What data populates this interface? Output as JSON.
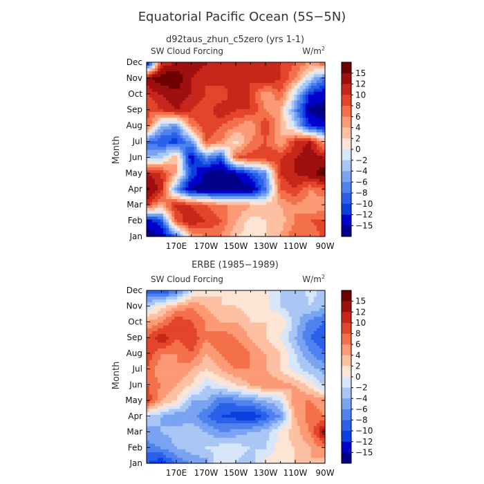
{
  "figure": {
    "title": "Equatorial Pacific Ocean (5S−5N)"
  },
  "chart_data": [
    {
      "type": "heatmap",
      "title": "d92taus_zhun_c5zero (yrs 1-1)",
      "variable": "SW Cloud Forcing",
      "units_base": "W/m",
      "units_exp": "2",
      "ylabel": "Month",
      "x_ticks": [
        "170E",
        "170W",
        "150W",
        "130W",
        "110W",
        "90W"
      ],
      "y_ticks": [
        "Jan",
        "Feb",
        "Mar",
        "Apr",
        "May",
        "Jun",
        "Jul",
        "Aug",
        "Sep",
        "Oct",
        "Nov",
        "Dec"
      ],
      "x": [
        150,
        160,
        170,
        180,
        190,
        200,
        210,
        220,
        230,
        240,
        250,
        260,
        270
      ],
      "y": [
        1,
        2,
        3,
        4,
        5,
        6,
        7,
        8,
        9,
        10,
        11,
        12
      ],
      "z": [
        [
          -17,
          -16,
          -8,
          4,
          6,
          6,
          2,
          1,
          2,
          4,
          8,
          6,
          9
        ],
        [
          -14,
          -10,
          8,
          12,
          10,
          8,
          4,
          1,
          2,
          3,
          6,
          8,
          9
        ],
        [
          10,
          4,
          11,
          10,
          8,
          6,
          6,
          4,
          3,
          4,
          6,
          4,
          4
        ],
        [
          16,
          11,
          -6,
          -16,
          -16,
          -18,
          -18,
          -16,
          -8,
          8,
          10,
          6,
          8
        ],
        [
          12,
          10,
          4,
          -10,
          -16,
          -17,
          -15,
          -10,
          -6,
          10,
          12,
          14,
          17
        ],
        [
          -4,
          -2,
          4,
          -14,
          -6,
          -10,
          8,
          9,
          10,
          10,
          12,
          14,
          12
        ],
        [
          -8,
          -10,
          -11,
          -6,
          8,
          6,
          1,
          6,
          8,
          4,
          10,
          12,
          4
        ],
        [
          9,
          -4,
          -6,
          6,
          10,
          8,
          6,
          4,
          10,
          4,
          -2,
          -12,
          -14
        ],
        [
          8,
          10,
          12,
          10,
          8,
          12,
          10,
          10,
          6,
          4,
          -6,
          -16,
          -17
        ],
        [
          10,
          12,
          14,
          12,
          10,
          8,
          12,
          10,
          4,
          8,
          -2,
          -12,
          -14
        ],
        [
          14,
          17,
          18,
          12,
          10,
          12,
          10,
          10,
          12,
          10,
          6,
          -2,
          -8
        ],
        [
          -16,
          10,
          12,
          14,
          12,
          10,
          10,
          12,
          12,
          10,
          8,
          6,
          8
        ]
      ],
      "color_levels": [
        15,
        12,
        10,
        8,
        6,
        4,
        2,
        0,
        -2,
        -4,
        -6,
        -8,
        -10,
        -12,
        -15
      ]
    },
    {
      "type": "heatmap",
      "title": "ERBE (1985−1989)",
      "variable": "SW Cloud Forcing",
      "units_base": "W/m",
      "units_exp": "2",
      "ylabel": "Month",
      "x_ticks": [
        "170E",
        "170W",
        "150W",
        "130W",
        "110W",
        "90W"
      ],
      "y_ticks": [
        "Jan",
        "Feb",
        "Mar",
        "Apr",
        "May",
        "Jun",
        "Jul",
        "Aug",
        "Sep",
        "Oct",
        "Nov",
        "Dec"
      ],
      "x": [
        150,
        160,
        170,
        180,
        190,
        200,
        210,
        220,
        230,
        240,
        250,
        260,
        270
      ],
      "y": [
        1,
        2,
        3,
        4,
        5,
        6,
        7,
        8,
        9,
        10,
        11,
        12
      ],
      "z": [
        [
          -10,
          -12,
          -8,
          -6,
          -5,
          0,
          -2,
          -4,
          1,
          1,
          2,
          4,
          3
        ],
        [
          -7,
          -6,
          -4,
          -3,
          -2,
          -1,
          -1,
          -2,
          -2,
          1,
          2,
          4,
          6
        ],
        [
          -5,
          -4,
          -3,
          -2,
          -4,
          -6,
          -5,
          -4,
          -3,
          1,
          3,
          6,
          14
        ],
        [
          -2,
          -4,
          -6,
          -5,
          -8,
          -10,
          -11,
          -12,
          -9,
          -6,
          4,
          7,
          6
        ],
        [
          10,
          4,
          2,
          -4,
          -4,
          -8,
          -7,
          -6,
          -4,
          -2,
          6,
          6,
          5
        ],
        [
          8,
          6,
          4,
          2,
          -2,
          0,
          2,
          4,
          6,
          5,
          4,
          1,
          -3
        ],
        [
          8,
          4,
          6,
          4,
          2,
          4,
          6,
          6,
          4,
          2,
          -1,
          -3,
          -5
        ],
        [
          10,
          6,
          6,
          8,
          4,
          6,
          8,
          6,
          4,
          2,
          -2,
          -6,
          -8
        ],
        [
          8,
          12,
          8,
          10,
          6,
          8,
          6,
          4,
          2,
          0,
          -4,
          -8,
          -10
        ],
        [
          4,
          6,
          10,
          8,
          6,
          4,
          4,
          2,
          2,
          2,
          -3,
          -7,
          -8
        ],
        [
          -2,
          1,
          4,
          6,
          4,
          2,
          2,
          1,
          1,
          -2,
          -4,
          -2,
          -4
        ],
        [
          -9,
          -10,
          -8,
          -1,
          1,
          2,
          0,
          0,
          1,
          -2,
          -4,
          -1,
          -3
        ]
      ],
      "color_levels": [
        15,
        12,
        10,
        8,
        6,
        4,
        2,
        0,
        -2,
        -4,
        -6,
        -8,
        -10,
        -12,
        -15
      ]
    }
  ],
  "colors": {
    "scale": [
      "#00008b",
      "#0000cd",
      "#0a3fe0",
      "#2b60ea",
      "#4f82ee",
      "#7aa4f2",
      "#a9c6f5",
      "#d8e6fa",
      "#fde5d6",
      "#fdc0a3",
      "#fb9a74",
      "#f3704b",
      "#e2452a",
      "#c8261a",
      "#9e0f10",
      "#6e0000"
    ]
  }
}
